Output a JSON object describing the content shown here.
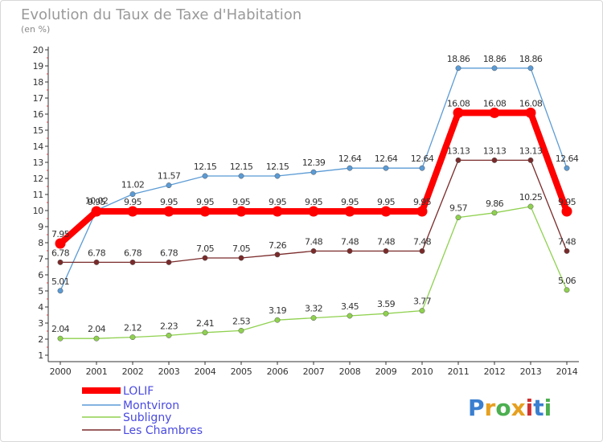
{
  "chart_data": {
    "type": "line",
    "title": "Evolution du Taux de Taxe d'Habitation",
    "subtitle": "(en %)",
    "x": [
      "2000",
      "2001",
      "2002",
      "2003",
      "2004",
      "2005",
      "2006",
      "2007",
      "2008",
      "2009",
      "2010",
      "2011",
      "2012",
      "2013",
      "2014"
    ],
    "yticks": [
      "1",
      "2",
      "3",
      "4",
      "5",
      "6",
      "7",
      "8",
      "9",
      "10",
      "11",
      "12",
      "13",
      "14",
      "15",
      "16",
      "17",
      "18",
      "19",
      "20"
    ],
    "ylim": [
      1,
      20
    ],
    "grid": false,
    "legend_position": "bottom-left",
    "series": [
      {
        "name": "LOLIF",
        "color": "#ff0000",
        "values": [
          7.95,
          9.95,
          9.95,
          9.95,
          9.95,
          9.95,
          9.95,
          9.95,
          9.95,
          9.95,
          9.95,
          16.08,
          16.08,
          16.08,
          9.95
        ],
        "labels": [
          "7.95",
          "9.95",
          "9.95",
          "9.95",
          "9.95",
          "9.95",
          "9.95",
          "9.95",
          "9.95",
          "9.95",
          "9.95",
          "16.08",
          "16.08",
          "16.08",
          "9.95"
        ]
      },
      {
        "name": "Montviron",
        "color": "#5b9bd5",
        "values": [
          5.01,
          10.02,
          11.02,
          11.57,
          12.15,
          12.15,
          12.15,
          12.39,
          12.64,
          12.64,
          12.64,
          18.86,
          18.86,
          18.86,
          12.64
        ],
        "labels": [
          "5.01",
          "10.02",
          "11.02",
          "11.57",
          "12.15",
          "12.15",
          "12.15",
          "12.39",
          "12.64",
          "12.64",
          "12.64",
          "18.86",
          "18.86",
          "18.86",
          "12.64"
        ]
      },
      {
        "name": "Subligny",
        "color": "#8fd14f",
        "values": [
          2.04,
          2.04,
          2.12,
          2.23,
          2.41,
          2.53,
          3.19,
          3.32,
          3.45,
          3.59,
          3.77,
          9.57,
          9.86,
          10.25,
          5.06
        ],
        "labels": [
          "2.04",
          "2.04",
          "2.12",
          "2.23",
          "2.41",
          "2.53",
          "3.19",
          "3.32",
          "3.45",
          "3.59",
          "3.77",
          "9.57",
          "9.86",
          "10.25",
          "5.06"
        ]
      },
      {
        "name": "Les Chambres",
        "color": "#7a2a2a",
        "values": [
          6.78,
          6.78,
          6.78,
          6.78,
          7.05,
          7.05,
          7.26,
          7.48,
          7.48,
          7.48,
          7.48,
          13.13,
          13.13,
          13.13,
          7.48
        ],
        "labels": [
          "6.78",
          "6.78",
          "6.78",
          "6.78",
          "7.05",
          "7.05",
          "7.26",
          "7.48",
          "7.48",
          "7.48",
          "7.48",
          "13.13",
          "13.13",
          "13.13",
          "7.48"
        ]
      }
    ]
  },
  "logo": {
    "text": "Proxiti"
  }
}
